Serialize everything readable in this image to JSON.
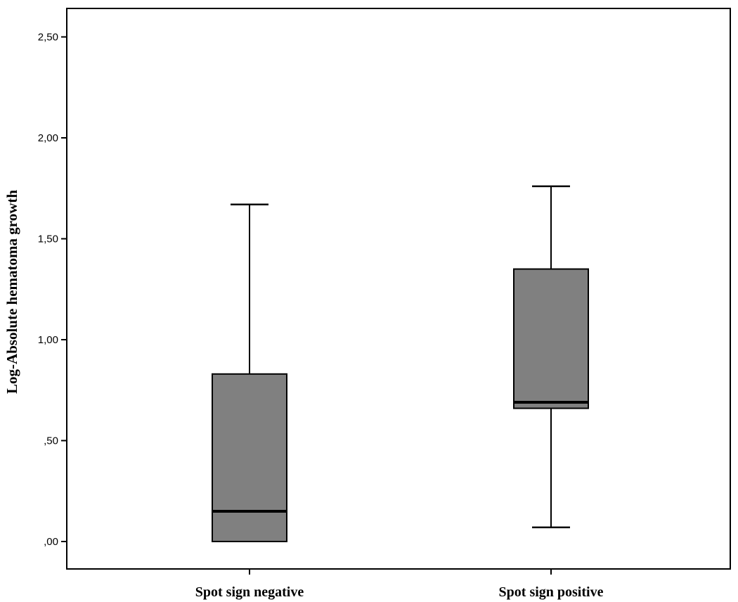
{
  "chart_data": {
    "type": "box",
    "title": "",
    "xlabel": "",
    "ylabel": "Log-Absolute hematoma growth",
    "ylim": [
      -0.15,
      2.65
    ],
    "yticks": [
      0.0,
      0.5,
      1.0,
      1.5,
      2.0,
      2.5
    ],
    "ytick_labels": [
      ",00",
      ",50",
      "1,00",
      "1,50",
      "2,00",
      "2,50"
    ],
    "grid": false,
    "categories": [
      "Spot sign negative",
      "Spot sign positive"
    ],
    "boxes": [
      {
        "category": "Spot sign negative",
        "min": 0.0,
        "q1": 0.0,
        "median": 0.15,
        "q3": 0.83,
        "max": 1.67
      },
      {
        "category": "Spot sign positive",
        "min": 0.07,
        "q1": 0.66,
        "median": 0.69,
        "q3": 1.35,
        "max": 1.76
      }
    ],
    "colors": {
      "box_fill": "#808080",
      "stroke": "#000000",
      "background": "#ffffff"
    }
  }
}
